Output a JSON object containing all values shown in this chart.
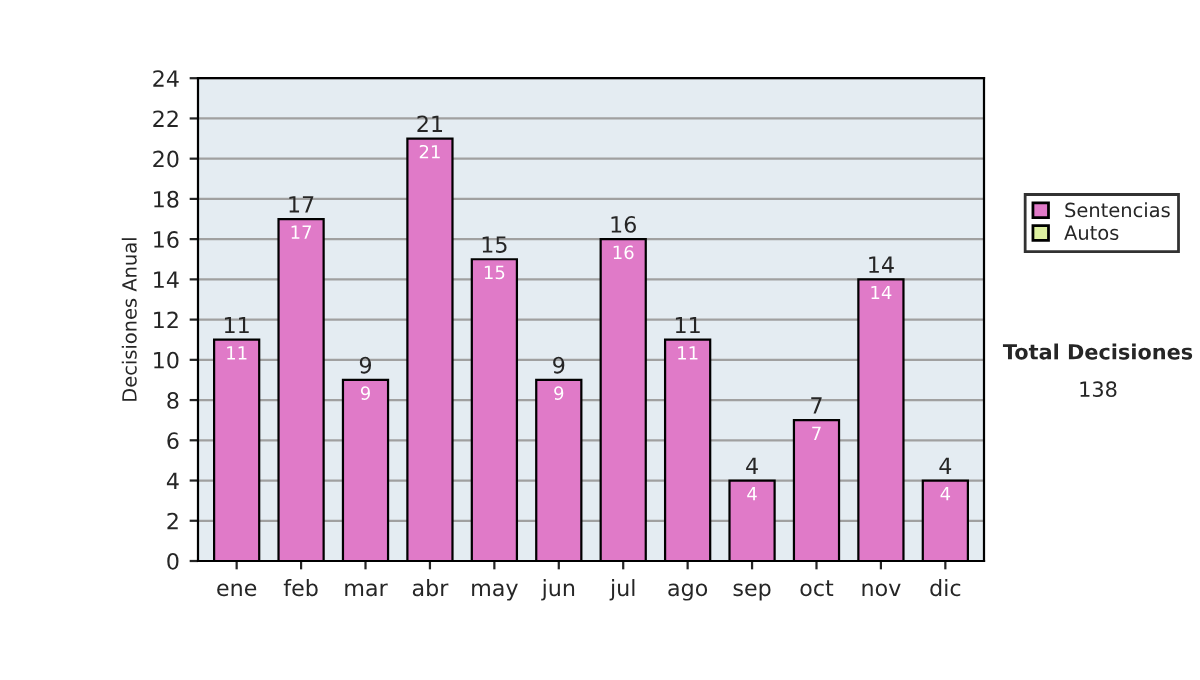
{
  "chart_data": {
    "type": "bar",
    "stacked": true,
    "ylabel": "Decisiones Anual",
    "categories": [
      "ene",
      "feb",
      "mar",
      "abr",
      "may",
      "jun",
      "jul",
      "ago",
      "sep",
      "oct",
      "nov",
      "dic"
    ],
    "series": [
      {
        "name": "Sentencias",
        "color": "#e07ac8",
        "values": [
          11,
          17,
          9,
          21,
          15,
          9,
          16,
          11,
          4,
          7,
          14,
          4
        ],
        "value_labels": [
          "11",
          "17",
          "9",
          "21",
          "15",
          "9",
          "16",
          "11",
          "4",
          "7",
          "14",
          "4"
        ]
      },
      {
        "name": "Autos",
        "color": "#ddf0a0",
        "values": [
          0,
          0,
          0,
          0,
          0,
          0,
          0,
          0,
          0,
          0,
          0,
          0
        ]
      }
    ],
    "totals": [
      "11",
      "17",
      "9",
      "21",
      "15",
      "9",
      "16",
      "11",
      "4",
      "7",
      "14",
      "4"
    ],
    "ylim": [
      0,
      24
    ],
    "yticks": [
      0,
      2,
      4,
      6,
      8,
      10,
      12,
      14,
      16,
      18,
      20,
      22,
      24
    ],
    "grid": "y",
    "legend": "right",
    "annotations": [
      "Total Decisiones",
      "138"
    ]
  }
}
